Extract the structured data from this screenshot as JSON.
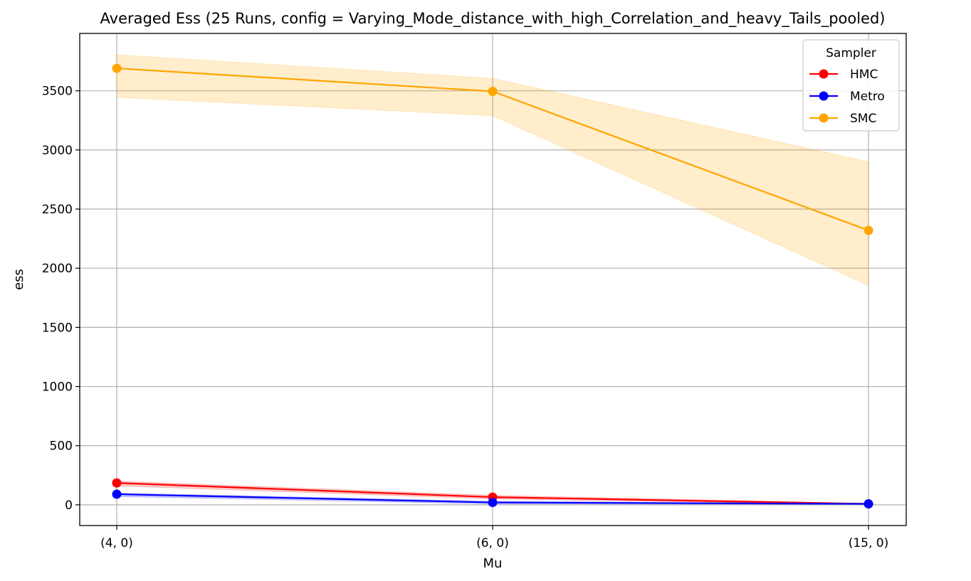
{
  "chart_data": {
    "type": "line",
    "title": "Averaged Ess (25 Runs, config = Varying_Mode_distance_with_high_Correlation_and_heavy_Tails_pooled)",
    "xlabel": "Mu",
    "ylabel": "ess",
    "categories": [
      "(4, 0)",
      "(6, 0)",
      "(15, 0)"
    ],
    "ylim": [
      -175,
      3985
    ],
    "yticks": [
      0,
      500,
      1000,
      1500,
      2000,
      2500,
      3000,
      3500
    ],
    "grid": true,
    "legend": {
      "title": "Sampler",
      "position": "top-right"
    },
    "series": [
      {
        "name": "HMC",
        "color": "#ff0000",
        "values": [
          185,
          65,
          8
        ],
        "lower": [
          160,
          50,
          4
        ],
        "upper": [
          200,
          80,
          12
        ]
      },
      {
        "name": "Metro",
        "color": "#0000ff",
        "values": [
          90,
          20,
          8
        ],
        "lower": [
          70,
          8,
          4
        ],
        "upper": [
          100,
          30,
          12
        ]
      },
      {
        "name": "SMC",
        "color": "#ffa500",
        "values": [
          3690,
          3495,
          2320
        ],
        "lower": [
          3445,
          3290,
          1855
        ],
        "upper": [
          3805,
          3605,
          2900
        ]
      }
    ]
  }
}
